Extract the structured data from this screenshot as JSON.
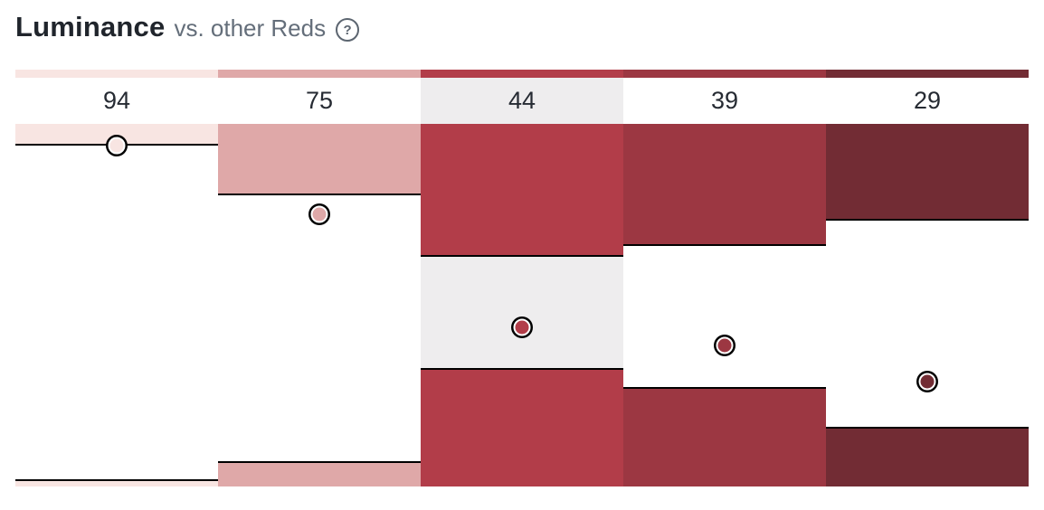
{
  "header": {
    "title": "Luminance",
    "subtitle": "vs. other Reds",
    "help_icon_glyph": "?"
  },
  "chart_data": {
    "type": "bar",
    "note": "luminance chart: one column per red shade; dot marks the shade's luminance; filled bands span luminance ranges from top (100) and bottom (0); middle column is the selected shade",
    "title": "Luminance",
    "subtitle": "vs. other Reds",
    "ylim": [
      0,
      100
    ],
    "categories": [
      "94",
      "75",
      "44",
      "39",
      "29"
    ],
    "values": [
      94,
      75,
      44,
      39,
      29
    ],
    "columns": [
      {
        "label": "94",
        "value": 94,
        "color": "#f8e5e2",
        "top_band_end": 94.5,
        "bottom_band_start": 2,
        "highlighted": false
      },
      {
        "label": "75",
        "value": 75,
        "color": "#dfa8a8",
        "top_band_end": 80.75,
        "bottom_band_start": 7,
        "highlighted": false
      },
      {
        "label": "44",
        "value": 44,
        "color": "#b23d49",
        "top_band_end": 63.75,
        "bottom_band_start": 32.75,
        "highlighted": true
      },
      {
        "label": "39",
        "value": 39,
        "color": "#9c3742",
        "top_band_end": 66.75,
        "bottom_band_start": 27.5,
        "highlighted": false
      },
      {
        "label": "29",
        "value": 29,
        "color": "#722c34",
        "top_band_end": 73.75,
        "bottom_band_start": 16.5,
        "highlighted": false
      }
    ],
    "highlight_bg": "#eeedee",
    "line_color": "#000000",
    "legend": "none",
    "grid": false
  }
}
